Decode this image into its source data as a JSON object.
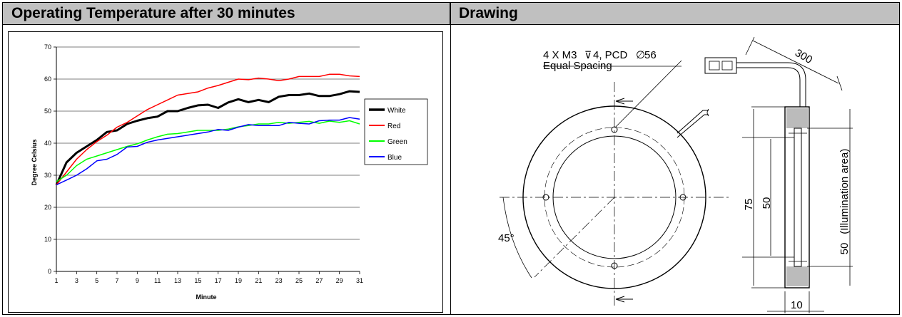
{
  "headers": {
    "left": "Operating Temperature after 30 minutes",
    "right": "Drawing"
  },
  "chart_data": {
    "type": "line",
    "title": "",
    "xlabel": "Minute",
    "ylabel": "Degree Celsius",
    "ylim": [
      0,
      70
    ],
    "xlim": [
      1,
      31
    ],
    "yticks": [
      0,
      10,
      20,
      30,
      40,
      50,
      60,
      70
    ],
    "xticks": [
      1,
      3,
      5,
      7,
      9,
      11,
      13,
      15,
      17,
      19,
      21,
      23,
      25,
      27,
      29,
      31
    ],
    "grid": "horizontal",
    "legend": "right",
    "x": [
      1,
      2,
      3,
      4,
      5,
      6,
      7,
      8,
      9,
      10,
      11,
      12,
      13,
      14,
      15,
      16,
      17,
      18,
      19,
      20,
      21,
      22,
      23,
      24,
      25,
      26,
      27,
      28,
      29,
      30,
      31
    ],
    "series": [
      {
        "name": "White",
        "color": "#000000",
        "width": 3,
        "values": [
          27,
          34,
          37,
          39,
          41,
          43.5,
          44,
          46,
          47,
          47.8,
          48.3,
          50,
          50,
          51,
          51.8,
          52,
          51,
          52.7,
          53.7,
          52.8,
          53.5,
          52.8,
          54.5,
          55,
          55,
          55.5,
          54.7,
          54.7,
          55.3,
          56.2,
          56
        ]
      },
      {
        "name": "Red",
        "color": "#ff0000",
        "width": 1.5,
        "values": [
          27,
          31,
          35,
          38,
          40.5,
          42.5,
          45,
          46.5,
          48.5,
          50.5,
          52,
          53.5,
          55,
          55.5,
          56,
          57.2,
          58,
          59,
          60,
          59.8,
          60.3,
          60,
          59.5,
          60,
          60.8,
          60.8,
          60.8,
          61.5,
          61.5,
          61,
          60.8
        ]
      },
      {
        "name": "Green",
        "color": "#00ff00",
        "width": 1.5,
        "values": [
          28,
          30,
          33,
          35,
          36,
          37,
          38,
          39,
          39.8,
          41,
          42,
          42.8,
          43,
          43.5,
          44,
          44,
          44,
          44.4,
          45.1,
          45.5,
          46,
          46,
          46.5,
          46.2,
          46.5,
          46.8,
          46.2,
          46.9,
          46.5,
          47,
          46
        ]
      },
      {
        "name": "Blue",
        "color": "#0000ff",
        "width": 1.5,
        "values": [
          27,
          28.5,
          30,
          32,
          34.5,
          35,
          36.5,
          38.8,
          39,
          40.3,
          41,
          41.5,
          42,
          42.5,
          43,
          43.5,
          44.3,
          44,
          45,
          45.8,
          45.5,
          45.5,
          45.5,
          46.5,
          46.2,
          46,
          47,
          47.2,
          47.2,
          48,
          47.5
        ]
      }
    ]
  },
  "drawing": {
    "callout_line1": "4 X M3",
    "callout_line1b": "4, PCD",
    "callout_line1c": "56",
    "callout_line2": "Equal Spacing",
    "dim_cable": "300",
    "dim_angle": "45°",
    "dim_outer": "75",
    "dim_inner": "50",
    "dim_illum_value": "50",
    "dim_illum_label": "(Illumination area)",
    "dim_width": "10"
  }
}
